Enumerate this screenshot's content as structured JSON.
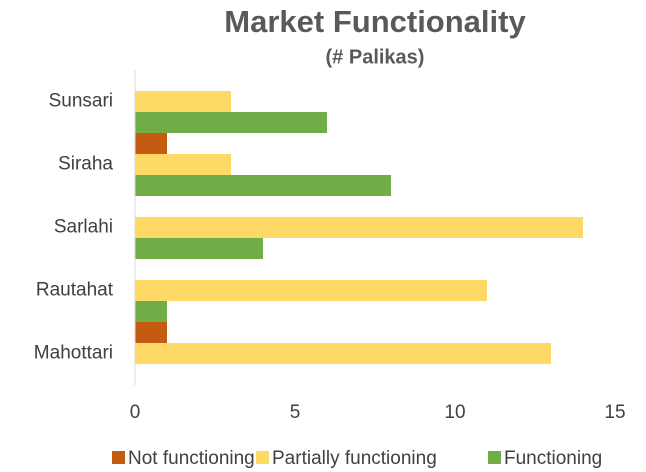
{
  "chart_data": {
    "type": "hbar",
    "title": "Market Functionality",
    "subtitle": "(# Palikas)",
    "categories": [
      "Sunsari",
      "Siraha",
      "Sarlahi",
      "Rautahat",
      "Mahottari"
    ],
    "series": [
      {
        "name": "Not functioning",
        "color": "#c55a11",
        "values": [
          0,
          1,
          0,
          0,
          1
        ]
      },
      {
        "name": "Partially functioning",
        "color": "#ffd966",
        "values": [
          3,
          3,
          14,
          11,
          13
        ]
      },
      {
        "name": "Functioning",
        "color": "#70ad47",
        "values": [
          6,
          8,
          4,
          1,
          0
        ]
      }
    ],
    "xlim": [
      0,
      15
    ],
    "xticks": [
      0,
      5,
      10,
      15
    ],
    "grid": false,
    "legend": "bottom"
  }
}
